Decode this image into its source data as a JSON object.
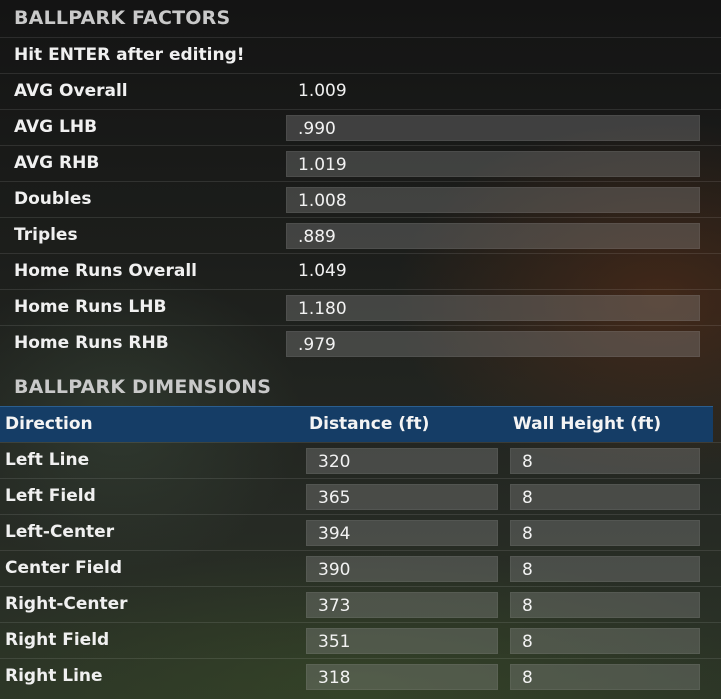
{
  "factors": {
    "title": "BALLPARK FACTORS",
    "hint": "Hit ENTER after editing!",
    "rows": [
      {
        "label": "AVG Overall",
        "value": "1.009",
        "editable": false
      },
      {
        "label": "AVG LHB",
        "value": ".990",
        "editable": true
      },
      {
        "label": "AVG RHB",
        "value": "1.019",
        "editable": true
      },
      {
        "label": "Doubles",
        "value": "1.008",
        "editable": true
      },
      {
        "label": "Triples",
        "value": ".889",
        "editable": true
      },
      {
        "label": "Home Runs Overall",
        "value": "1.049",
        "editable": false
      },
      {
        "label": "Home Runs LHB",
        "value": "1.180",
        "editable": true
      },
      {
        "label": "Home Runs RHB",
        "value": ".979",
        "editable": true
      }
    ]
  },
  "dimensions": {
    "title": "BALLPARK DIMENSIONS",
    "columns": {
      "direction": "Direction",
      "distance": "Distance (ft)",
      "wall": "Wall Height (ft)"
    },
    "rows": [
      {
        "direction": "Left Line",
        "distance": "320",
        "wall": "8"
      },
      {
        "direction": "Left Field",
        "distance": "365",
        "wall": "8"
      },
      {
        "direction": "Left-Center",
        "distance": "394",
        "wall": "8"
      },
      {
        "direction": "Center Field",
        "distance": "390",
        "wall": "8"
      },
      {
        "direction": "Right-Center",
        "distance": "373",
        "wall": "8"
      },
      {
        "direction": "Right Field",
        "distance": "351",
        "wall": "8"
      },
      {
        "direction": "Right Line",
        "distance": "318",
        "wall": "8"
      }
    ]
  }
}
